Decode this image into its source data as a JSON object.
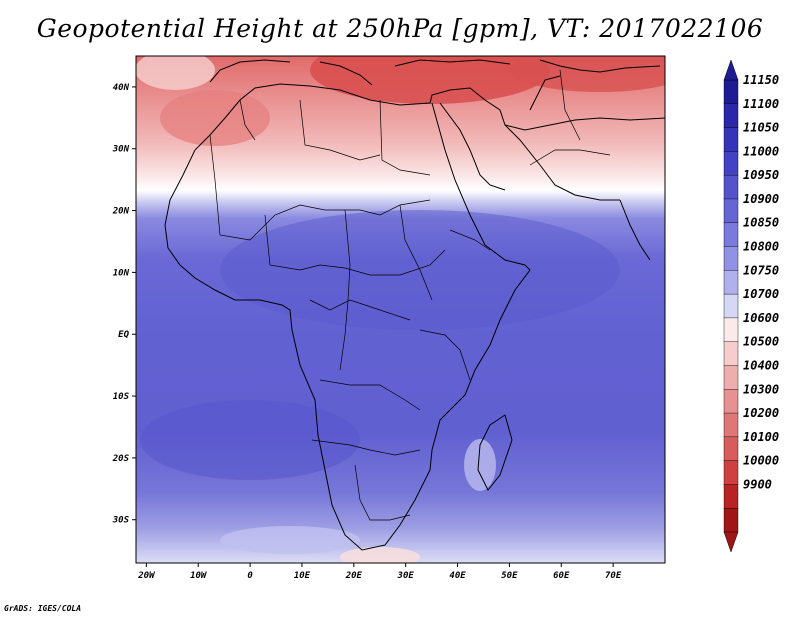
{
  "title": "Geopotential Height at 250hPa [gpm], VT: 2017022106",
  "credit": "GrADS: IGES/COLA",
  "lat_labels": [
    {
      "text": "40N",
      "lat": 40
    },
    {
      "text": "30N",
      "lat": 30
    },
    {
      "text": "20N",
      "lat": 20
    },
    {
      "text": "10N",
      "lat": 10
    },
    {
      "text": "EQ",
      "lat": 0
    },
    {
      "text": "10S",
      "lat": -10
    },
    {
      "text": "20S",
      "lat": -20
    },
    {
      "text": "30S",
      "lat": -30
    }
  ],
  "lon_labels": [
    {
      "text": "20W",
      "lon": -20
    },
    {
      "text": "10W",
      "lon": -10
    },
    {
      "text": "0",
      "lon": 0
    },
    {
      "text": "10E",
      "lon": 10
    },
    {
      "text": "20E",
      "lon": 20
    },
    {
      "text": "30E",
      "lon": 30
    },
    {
      "text": "40E",
      "lon": 40
    },
    {
      "text": "50E",
      "lon": 50
    },
    {
      "text": "60E",
      "lon": 60
    },
    {
      "text": "70E",
      "lon": 70
    }
  ],
  "colorbar": {
    "levels": [
      "11150",
      "11100",
      "11050",
      "11000",
      "10950",
      "10900",
      "10850",
      "10800",
      "10750",
      "10700",
      "10600",
      "10500",
      "10400",
      "10300",
      "10200",
      "10100",
      "10000",
      "9900"
    ],
    "colors": [
      "#1e1c94",
      "#2a28a8",
      "#3534b8",
      "#4342c4",
      "#5453cc",
      "#6665d4",
      "#7a79dc",
      "#9292e4",
      "#b0b0ec",
      "#d6d6f6",
      "#fbeaea",
      "#f6cccc",
      "#efaeae",
      "#e79292",
      "#df7777",
      "#d85c5c",
      "#cf4141",
      "#b82424",
      "#a01616"
    ]
  },
  "chart_data": {
    "type": "heatmap",
    "title": "Geopotential Height at 250hPa [gpm], VT: 2017022106",
    "variable": "Geopotential Height at 250hPa",
    "units": "gpm",
    "valid_time": "2017022106",
    "lon_range": [
      -22,
      80
    ],
    "lat_range": [
      -37,
      45
    ],
    "contour_levels": [
      9900,
      10000,
      10100,
      10200,
      10300,
      10400,
      10500,
      10600,
      10700,
      10750,
      10800,
      10850,
      10900,
      10950,
      11000,
      11050,
      11100,
      11150
    ]
  }
}
